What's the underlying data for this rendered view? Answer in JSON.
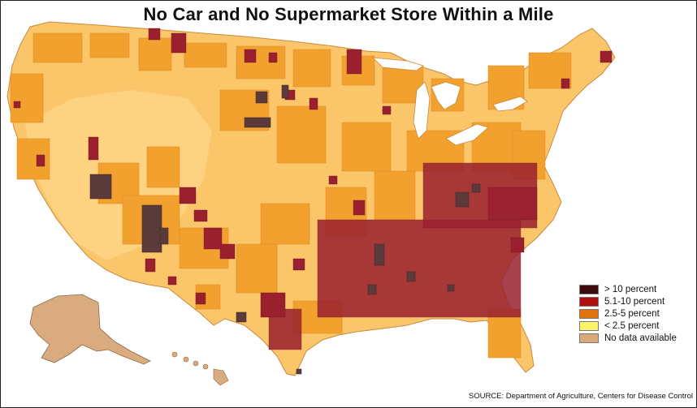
{
  "title": "No Car and No Supermarket Store Within a Mile",
  "source": "SOURCE: Department of Agriculture, Centers for Disease Control",
  "colors": {
    "gt10": "#3d0c0c",
    "p5to10": "#9b1f2a",
    "p2_5to5": "#e0800f",
    "lt2_5": "#ffe98a",
    "no_data": "#d9b089",
    "base_map": "#fbc56a",
    "orange_counties": "#f4a533",
    "dark_counties": "#8c2233",
    "darkest_counties": "#5a3a3a",
    "lakes": "#ffffff",
    "outline": "#b07b3a"
  },
  "legend": [
    {
      "label": "> 10 percent",
      "color": "#3d0c0c"
    },
    {
      "label": "5.1-10 percent",
      "color": "#b01010"
    },
    {
      "label": "2.5-5 percent",
      "color": "#e0740f"
    },
    {
      "label": "< 2.5 percent",
      "color": "#fff36a"
    },
    {
      "label": "No data available",
      "color": "#d9a97c"
    }
  ]
}
